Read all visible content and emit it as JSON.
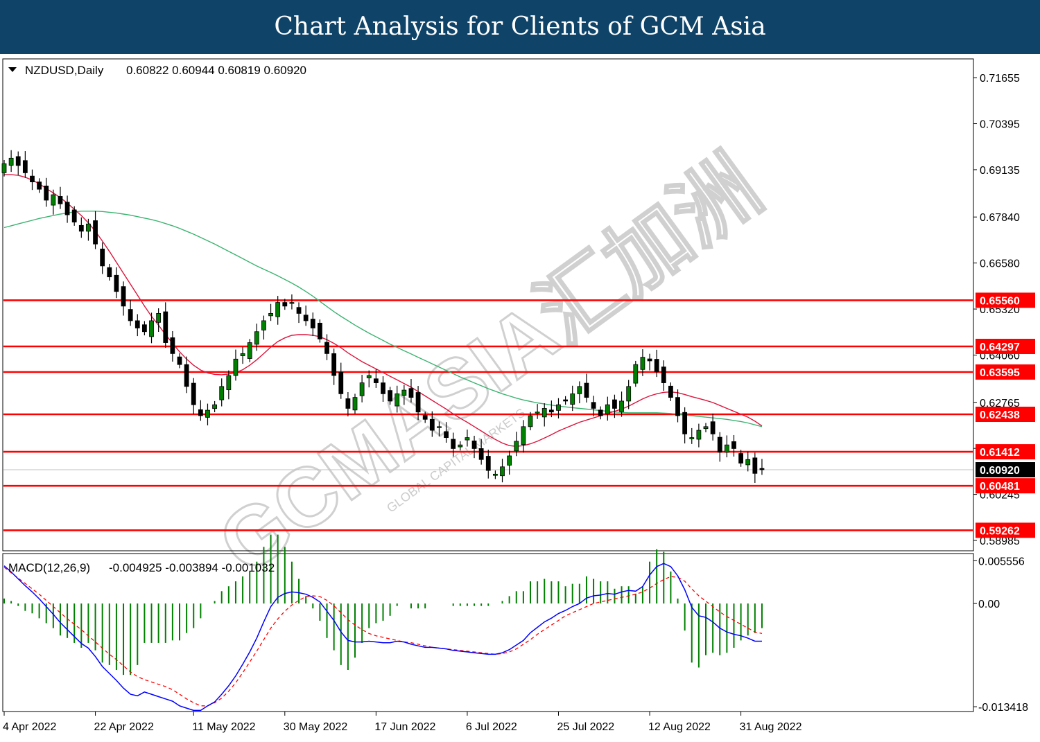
{
  "header": {
    "title": "Chart Analysis for Clients of GCM Asia"
  },
  "watermark": {
    "text": "GCMASIA汇加洲",
    "subtext": "GLOBAL CAPITAL MARKETS"
  },
  "chart_data": [
    {
      "type": "candlestick",
      "title": "NZDUSD,Daily",
      "ohlc_label": "0.60822 0.60944 0.60819 0.60920",
      "ylim": [
        0.5872,
        0.7215
      ],
      "y_ticks": [
        "0.71655",
        "0.70395",
        "0.69135",
        "0.67840",
        "0.66580",
        "0.65320",
        "0.64060",
        "0.62765",
        "0.61505",
        "0.60245",
        "0.58985"
      ],
      "x_labels": [
        "4 Apr 2022",
        "22 Apr 2022",
        "11 May 2022",
        "30 May 2022",
        "17 Jun 2022",
        "6 Jul 2022",
        "25 Jul 2022",
        "12 Aug 2022",
        "31 Aug 2022"
      ],
      "x_label_index": [
        0,
        13,
        27,
        40,
        53,
        66,
        79,
        92,
        105
      ],
      "levels": [
        {
          "value": 0.6556,
          "label": "0.65560"
        },
        {
          "value": 0.64297,
          "label": "0.64297"
        },
        {
          "value": 0.63595,
          "label": "0.63595"
        },
        {
          "value": 0.62438,
          "label": "0.62438"
        },
        {
          "value": 0.61412,
          "label": "0.61412"
        },
        {
          "value": 0.60481,
          "label": "0.60481"
        },
        {
          "value": 0.59262,
          "label": "0.59262"
        }
      ],
      "current_price": {
        "value": 0.6092,
        "label": "0.60920"
      },
      "colors": {
        "level": "#ff0000",
        "fast_ma": "#dc143c",
        "slow_ma": "#3cb371",
        "up_candle": "#008000",
        "down_candle": "#000000",
        "price_line": "#c0c0c0"
      },
      "closes": [
        0.693,
        0.6945,
        0.6925,
        0.6905,
        0.688,
        0.686,
        0.683,
        0.6845,
        0.682,
        0.679,
        0.677,
        0.6745,
        0.6765,
        0.671,
        0.665,
        0.662,
        0.658,
        0.654,
        0.65,
        0.648,
        0.647,
        0.65,
        0.652,
        0.644,
        0.641,
        0.638,
        0.632,
        0.627,
        0.624,
        0.6255,
        0.627,
        0.632,
        0.635,
        0.6395,
        0.641,
        0.644,
        0.647,
        0.65,
        0.652,
        0.655,
        0.654,
        0.655,
        0.652,
        0.65,
        0.648,
        0.645,
        0.641,
        0.635,
        0.63,
        0.626,
        0.629,
        0.633,
        0.635,
        0.633,
        0.63,
        0.628,
        0.63,
        0.631,
        0.629,
        0.625,
        0.623,
        0.62,
        0.621,
        0.618,
        0.615,
        0.616,
        0.618,
        0.615,
        0.612,
        0.609,
        0.608,
        0.61,
        0.613,
        0.617,
        0.621,
        0.624,
        0.625,
        0.626,
        0.625,
        0.627,
        0.628,
        0.63,
        0.632,
        0.629,
        0.626,
        0.624,
        0.627,
        0.626,
        0.628,
        0.632,
        0.638,
        0.64,
        0.639,
        0.636,
        0.633,
        0.629,
        0.624,
        0.619,
        0.618,
        0.62,
        0.621,
        0.619,
        0.614,
        0.616,
        0.615,
        0.611,
        0.612,
        0.6082,
        0.6092
      ],
      "ma_fast": [
        0.69,
        0.69,
        0.6898,
        0.6893,
        0.6885,
        0.6875,
        0.6862,
        0.685,
        0.6837,
        0.6822,
        0.6805,
        0.6788,
        0.6768,
        0.6745,
        0.6718,
        0.669,
        0.666,
        0.663,
        0.66,
        0.657,
        0.654,
        0.6512,
        0.6488,
        0.6462,
        0.6438,
        0.6415,
        0.6395,
        0.6378,
        0.6365,
        0.6357,
        0.6353,
        0.6352,
        0.6354,
        0.6358,
        0.6366,
        0.6378,
        0.6393,
        0.641,
        0.6428,
        0.6443,
        0.6453,
        0.646,
        0.6462,
        0.6462,
        0.646,
        0.6456,
        0.6448,
        0.6438,
        0.6426,
        0.6412,
        0.64,
        0.6388,
        0.6378,
        0.6368,
        0.6358,
        0.6348,
        0.6338,
        0.6328,
        0.6318,
        0.6306,
        0.6294,
        0.6282,
        0.627,
        0.6258,
        0.6245,
        0.6233,
        0.6222,
        0.621,
        0.6198,
        0.6186,
        0.6175,
        0.6165,
        0.6158,
        0.6156,
        0.6158,
        0.6163,
        0.617,
        0.6179,
        0.6188,
        0.6198,
        0.6206,
        0.6214,
        0.6222,
        0.6228,
        0.6234,
        0.624,
        0.6246,
        0.6252,
        0.6258,
        0.6266,
        0.6276,
        0.6286,
        0.6294,
        0.63,
        0.6304,
        0.6305,
        0.6303,
        0.6298,
        0.6292,
        0.6287,
        0.6282,
        0.6276,
        0.6268,
        0.626,
        0.6252,
        0.6244,
        0.6236,
        0.6225,
        0.6212
      ],
      "ma_slow": [
        0.6755,
        0.676,
        0.6765,
        0.677,
        0.6775,
        0.678,
        0.6784,
        0.6788,
        0.6792,
        0.6795,
        0.6798,
        0.68,
        0.68,
        0.68,
        0.6799,
        0.6797,
        0.6795,
        0.6792,
        0.6789,
        0.6785,
        0.6781,
        0.6777,
        0.6772,
        0.6766,
        0.676,
        0.6753,
        0.6745,
        0.6737,
        0.6728,
        0.6719,
        0.671,
        0.67,
        0.669,
        0.668,
        0.667,
        0.666,
        0.665,
        0.6641,
        0.6632,
        0.6623,
        0.6613,
        0.6603,
        0.6592,
        0.658,
        0.6567,
        0.6553,
        0.6539,
        0.6525,
        0.6512,
        0.65,
        0.6488,
        0.6477,
        0.6466,
        0.6456,
        0.6446,
        0.6436,
        0.6427,
        0.6418,
        0.6409,
        0.64,
        0.6391,
        0.6382,
        0.6373,
        0.6364,
        0.6355,
        0.6346,
        0.6338,
        0.633,
        0.6322,
        0.6314,
        0.6307,
        0.63,
        0.6294,
        0.6288,
        0.6283,
        0.6279,
        0.6275,
        0.6272,
        0.6269,
        0.6266,
        0.6264,
        0.6262,
        0.626,
        0.6258,
        0.6256,
        0.6254,
        0.6252,
        0.625,
        0.6249,
        0.6248,
        0.6248,
        0.6248,
        0.6248,
        0.6248,
        0.6247,
        0.6246,
        0.6244,
        0.6242,
        0.624,
        0.6238,
        0.6236,
        0.6234,
        0.6232,
        0.623,
        0.6227,
        0.6224,
        0.622,
        0.6215,
        0.621
      ]
    },
    {
      "type": "bar+line",
      "title": "MACD(12,26,9)",
      "values_label": "-0.004925 -0.003894 -0.001032",
      "ylim": [
        -0.01395,
        0.0064
      ],
      "y_ticks": [
        "0.005556",
        "0.00",
        "-0.013418"
      ],
      "colors": {
        "histogram": "#008000",
        "macd": "#0000ff",
        "signal": "#ff0000"
      },
      "macd_line": [
        0.0049,
        0.0041,
        0.0032,
        0.0023,
        0.0015,
        0.0006,
        -0.0004,
        -0.0014,
        -0.0025,
        -0.0034,
        -0.0043,
        -0.0052,
        -0.0058,
        -0.0069,
        -0.0082,
        -0.0091,
        -0.01,
        -0.011,
        -0.0118,
        -0.012,
        -0.0115,
        -0.0118,
        -0.0121,
        -0.0124,
        -0.0127,
        -0.0133,
        -0.0136,
        -0.0139,
        -0.0139,
        -0.0133,
        -0.0128,
        -0.0118,
        -0.0107,
        -0.0094,
        -0.0079,
        -0.0063,
        -0.0045,
        -0.0024,
        -0.0004,
        0.0008,
        0.0013,
        0.0015,
        0.0014,
        0.0012,
        0.0008,
        0.0002,
        -0.001,
        -0.0022,
        -0.0037,
        -0.0048,
        -0.005,
        -0.005,
        -0.0049,
        -0.005,
        -0.0051,
        -0.0051,
        -0.0049,
        -0.005,
        -0.0053,
        -0.0055,
        -0.0057,
        -0.0057,
        -0.0058,
        -0.0059,
        -0.0061,
        -0.0062,
        -0.0063,
        -0.0064,
        -0.0065,
        -0.0066,
        -0.0066,
        -0.0064,
        -0.006,
        -0.0054,
        -0.0048,
        -0.0038,
        -0.0031,
        -0.0024,
        -0.0019,
        -0.0013,
        -0.0009,
        -0.0004,
        0.0,
        0.0007,
        0.001,
        0.0011,
        0.0013,
        0.0012,
        0.0015,
        0.0017,
        0.0016,
        0.0022,
        0.0037,
        0.0048,
        0.0052,
        0.0048,
        0.0036,
        0.0018,
        -0.0005,
        -0.0016,
        -0.0018,
        -0.0024,
        -0.0032,
        -0.0037,
        -0.004,
        -0.0042,
        -0.0045,
        -0.0049,
        -0.0049
      ],
      "signal_line": [
        0.0047,
        0.004,
        0.0033,
        0.0026,
        0.0019,
        0.0012,
        0.0004,
        -0.0004,
        -0.0012,
        -0.002,
        -0.0027,
        -0.0034,
        -0.0042,
        -0.005,
        -0.0058,
        -0.0066,
        -0.0073,
        -0.0081,
        -0.0089,
        -0.0095,
        -0.0099,
        -0.0102,
        -0.0105,
        -0.0108,
        -0.0112,
        -0.0118,
        -0.0124,
        -0.0129,
        -0.0133,
        -0.0133,
        -0.0129,
        -0.0123,
        -0.0114,
        -0.0103,
        -0.009,
        -0.0076,
        -0.0062,
        -0.0047,
        -0.0032,
        -0.002,
        -0.001,
        -0.0002,
        0.0004,
        0.0009,
        0.001,
        0.0009,
        0.0004,
        -0.0003,
        -0.0012,
        -0.0021,
        -0.0028,
        -0.0034,
        -0.0039,
        -0.0042,
        -0.0044,
        -0.0046,
        -0.0048,
        -0.005,
        -0.0051,
        -0.0053,
        -0.0055,
        -0.0057,
        -0.0058,
        -0.0059,
        -0.006,
        -0.0061,
        -0.0062,
        -0.0063,
        -0.0064,
        -0.0065,
        -0.0066,
        -0.0065,
        -0.0063,
        -0.0059,
        -0.0053,
        -0.0047,
        -0.004,
        -0.0034,
        -0.0028,
        -0.0022,
        -0.0016,
        -0.0012,
        -0.0008,
        -0.0004,
        0.0,
        0.0002,
        0.0004,
        0.0006,
        0.0008,
        0.001,
        0.0012,
        0.0015,
        0.002,
        0.0026,
        0.0031,
        0.0035,
        0.0034,
        0.0029,
        0.0019,
        0.001,
        0.0003,
        -0.0004,
        -0.0011,
        -0.0017,
        -0.0022,
        -0.0027,
        -0.0032,
        -0.0037,
        -0.0039
      ]
    }
  ]
}
